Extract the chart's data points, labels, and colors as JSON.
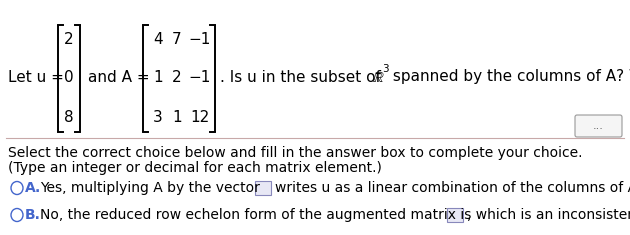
{
  "bg_color": "#ffffff",
  "u_vec": [
    "2",
    "0",
    "8"
  ],
  "A_mat": [
    [
      "4",
      "7",
      "−1"
    ],
    [
      "1",
      "2",
      "−1"
    ],
    [
      "3",
      "1",
      "12"
    ]
  ],
  "sep_line_color": "#c8a8a8",
  "select_line1": "Select the correct choice below and fill in the answer box to complete your choice.",
  "select_line2": "(Type an integer or decimal for each matrix element.)",
  "optA_text": "Yes, multiplying A by the vector",
  "optA_text2": "writes u as a linear combination of the columns of A.",
  "optB_text": "No, the reduced row echelon form of the augmented matrix is",
  "optB_text2": ", which is an inconsistent system.",
  "option_color": "#4466cc",
  "normal_color": "#000000",
  "fs_main": 11,
  "fs_option": 10,
  "fs_small": 9
}
